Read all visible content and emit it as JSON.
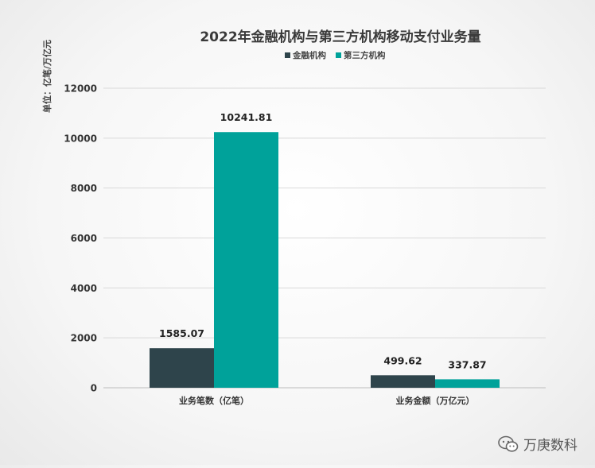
{
  "chart_data": {
    "type": "bar",
    "title": "2022年金融机构与第三方机构移动支付业务量",
    "ylabel": "单位：亿笔/万亿元",
    "xlabel": "",
    "categories": [
      "业务笔数（亿笔）",
      "业务金额（万亿元）"
    ],
    "series": [
      {
        "name": "金融机构",
        "color": "#2e444b",
        "values": [
          1585.07,
          499.62
        ],
        "labels": [
          "1585.07",
          "499.62"
        ]
      },
      {
        "name": "第三方机构",
        "color": "#00a29a",
        "values": [
          10241.81,
          337.87
        ],
        "labels": [
          "10241.81",
          "337.87"
        ]
      }
    ],
    "ylim": [
      0,
      12000
    ],
    "yticks": [
      0,
      2000,
      4000,
      6000,
      8000,
      10000,
      12000
    ],
    "grid": true,
    "legend": "top-center"
  },
  "watermark": {
    "text": "万庚数科",
    "icon": "wechat-icon"
  }
}
